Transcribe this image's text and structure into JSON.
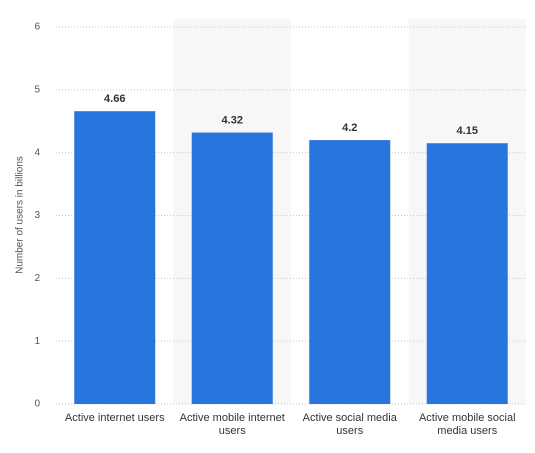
{
  "chart_data": {
    "type": "bar",
    "y_label": "Number of users in billions",
    "categories": [
      "Active internet users",
      "Active mobile internet users",
      "Active social media users",
      "Active mobile social media users"
    ],
    "values": [
      4.66,
      4.32,
      4.2,
      4.15
    ],
    "color": "#2876dd",
    "ylim": [
      0,
      6
    ],
    "yticks": [
      0,
      1,
      2,
      3,
      4,
      5,
      6
    ],
    "grid": true
  }
}
